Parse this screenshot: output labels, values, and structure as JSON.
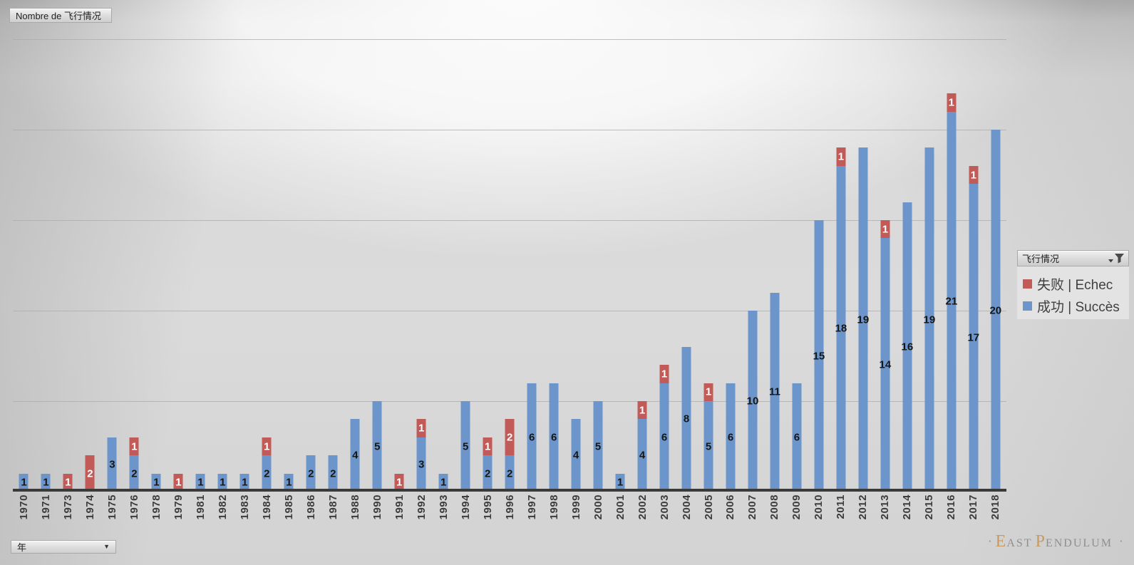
{
  "title_button": {
    "label": "Nombre de 飞行情况"
  },
  "axis_field_button": {
    "label": "年",
    "arrow_icon": "▼"
  },
  "legend": {
    "field_label": "飞行情况",
    "filter_icon": "funnel-filter-icon",
    "items": [
      {
        "label": "失败 | Echec",
        "color": "#c25b58",
        "series": "fail"
      },
      {
        "label": "成功 | Succès",
        "color": "#6c96cb",
        "series": "success"
      }
    ]
  },
  "watermark": {
    "left_dot": "·",
    "east_initial": "E",
    "east_rest": "AST",
    "pendulum_initial": "P",
    "pendulum_rest": "ENDULUM",
    "right_dot": "·",
    "initial_color": "#c79b60",
    "text_color": "#8f8f8f"
  },
  "colors": {
    "success_bar": "#6c96cb",
    "fail_bar": "#c25b58",
    "axis_line": "#3a3a3a",
    "gridline": "#ababab",
    "bar_label_on_blue": "#161616",
    "bar_label_on_red": "#ffffff"
  },
  "chart_data": {
    "type": "bar",
    "stacked": true,
    "title": "Nombre de 飞行情况",
    "xlabel": "年",
    "ylabel": "",
    "ylim": [
      0,
      25
    ],
    "gridline_step": 5,
    "grid": true,
    "legend_position": "right",
    "data_labels": "value-centered-in-each-segment",
    "categories": [
      "1970",
      "1971",
      "1973",
      "1974",
      "1975",
      "1976",
      "1978",
      "1979",
      "1981",
      "1982",
      "1983",
      "1984",
      "1985",
      "1986",
      "1987",
      "1988",
      "1990",
      "1991",
      "1992",
      "1993",
      "1994",
      "1995",
      "1996",
      "1997",
      "1998",
      "1999",
      "2000",
      "2001",
      "2002",
      "2003",
      "2004",
      "2005",
      "2006",
      "2007",
      "2008",
      "2009",
      "2010",
      "2011",
      "2012",
      "2013",
      "2014",
      "2015",
      "2016",
      "2017",
      "2018"
    ],
    "series": [
      {
        "name": "成功 | Succès",
        "color": "#6c96cb",
        "values": [
          1,
          1,
          0,
          0,
          3,
          2,
          1,
          0,
          1,
          1,
          1,
          2,
          1,
          2,
          2,
          4,
          5,
          0,
          3,
          1,
          5,
          2,
          2,
          6,
          6,
          4,
          5,
          1,
          4,
          6,
          8,
          5,
          6,
          10,
          11,
          6,
          15,
          18,
          19,
          14,
          16,
          19,
          21,
          17,
          20
        ]
      },
      {
        "name": "失败 | Echec",
        "color": "#c25b58",
        "values": [
          0,
          0,
          1,
          2,
          0,
          1,
          0,
          1,
          0,
          0,
          0,
          1,
          0,
          0,
          0,
          0,
          0,
          1,
          1,
          0,
          0,
          1,
          2,
          0,
          0,
          0,
          0,
          0,
          1,
          1,
          0,
          1,
          0,
          0,
          0,
          0,
          0,
          1,
          0,
          1,
          0,
          0,
          1,
          1,
          0
        ]
      }
    ]
  }
}
